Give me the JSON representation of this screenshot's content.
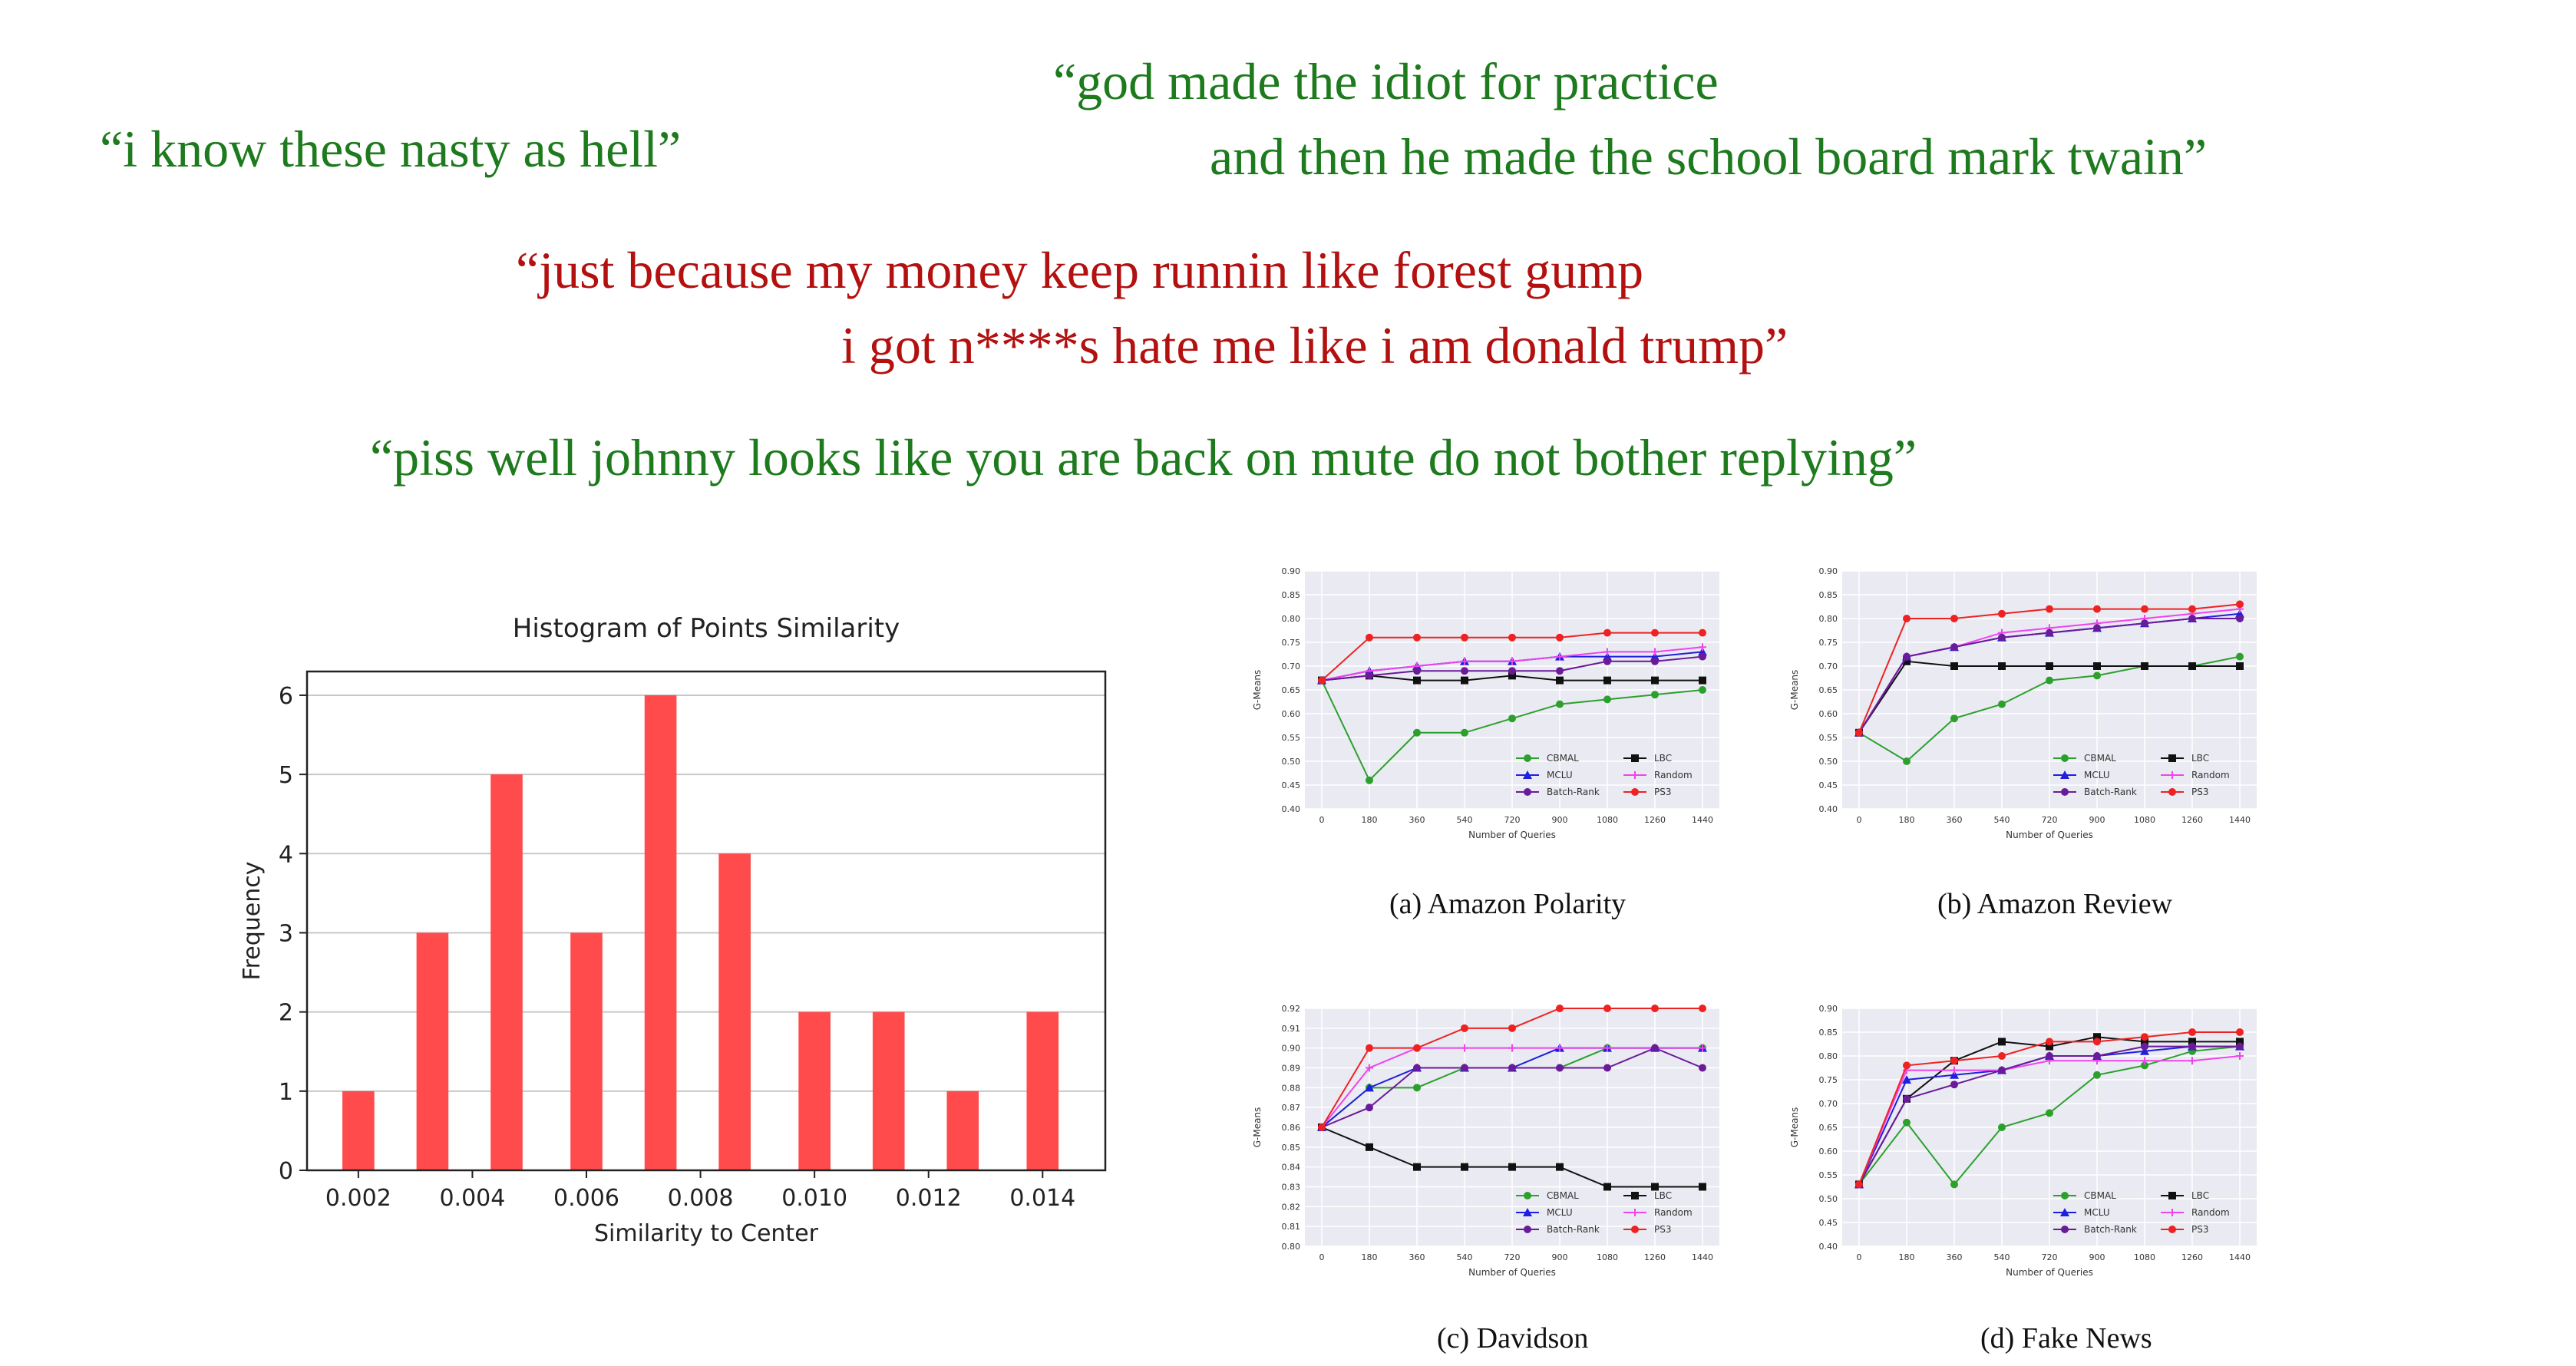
{
  "quotes": [
    {
      "text": "“i know these nasty as hell”",
      "color": "#1d7a1d"
    },
    {
      "text": "“god made the idiot for practice",
      "color": "#1d7a1d"
    },
    {
      "text": "and then he made the school board mark twain”",
      "color": "#1d7a1d"
    },
    {
      "text": "“just because my money keep runnin like forest gump",
      "color": "#b31010"
    },
    {
      "text": "i got n****s hate me like i am donald trump”",
      "color": "#b31010"
    },
    {
      "text": "“piss well johnny looks like you are back on mute do not bother replying”",
      "color": "#1d7a1d"
    }
  ],
  "captions": {
    "a": "(a) Amazon Polarity",
    "b": "(b) Amazon Review",
    "c": "(c) Davidson",
    "d": "(d) Fake News"
  },
  "legend_colors": {
    "CBMAL": "#2ca02c",
    "LBC": "#111111",
    "MCLU": "#1f1fdd",
    "Random": "#ee44ee",
    "Batch-Rank": "#6a1b9a",
    "PS3": "#ee2222"
  },
  "chart_data": [
    {
      "type": "bar",
      "title": "Histogram of Points Similarity",
      "xlabel": "Similarity to Center",
      "ylabel": "Frequency",
      "x": [
        0.002,
        0.0033,
        0.0046,
        0.006,
        0.0073,
        0.0086,
        0.01,
        0.0113,
        0.0126,
        0.014
      ],
      "values": [
        1,
        3,
        5,
        3,
        6,
        4,
        2,
        2,
        1,
        2
      ],
      "xticks": [
        "0.002",
        "0.004",
        "0.006",
        "0.008",
        "0.010",
        "0.012",
        "0.014"
      ],
      "xtick_values": [
        0.002,
        0.004,
        0.006,
        0.008,
        0.01,
        0.012,
        0.014
      ],
      "yticks": [
        "0",
        "1",
        "2",
        "3",
        "4",
        "5",
        "6"
      ],
      "xlim": [
        0.0011,
        0.0151
      ],
      "ylim": [
        0,
        6.3
      ],
      "bar_color": "#ff4b4b",
      "grid": "y"
    },
    {
      "type": "line",
      "xlabel": "Number of Queries",
      "ylabel": "G-Means",
      "x": [
        0,
        180,
        360,
        540,
        720,
        900,
        1080,
        1260,
        1440
      ],
      "ylim": [
        0.4,
        0.9
      ],
      "yticks": [
        "0.40",
        "0.45",
        "0.50",
        "0.55",
        "0.60",
        "0.65",
        "0.70",
        "0.75",
        "0.80",
        "0.85",
        "0.90"
      ],
      "series": [
        {
          "name": "CBMAL",
          "values": [
            0.67,
            0.46,
            0.56,
            0.56,
            0.59,
            0.62,
            0.63,
            0.64,
            0.65
          ]
        },
        {
          "name": "LBC",
          "values": [
            0.67,
            0.68,
            0.67,
            0.67,
            0.68,
            0.67,
            0.67,
            0.67,
            0.67
          ]
        },
        {
          "name": "MCLU",
          "values": [
            0.67,
            0.69,
            0.7,
            0.71,
            0.71,
            0.72,
            0.72,
            0.72,
            0.73
          ]
        },
        {
          "name": "Random",
          "values": [
            0.67,
            0.69,
            0.7,
            0.71,
            0.71,
            0.72,
            0.73,
            0.73,
            0.74
          ]
        },
        {
          "name": "Batch-Rank",
          "values": [
            0.67,
            0.68,
            0.69,
            0.69,
            0.69,
            0.69,
            0.71,
            0.71,
            0.72
          ]
        },
        {
          "name": "PS3",
          "values": [
            0.67,
            0.76,
            0.76,
            0.76,
            0.76,
            0.76,
            0.77,
            0.77,
            0.77
          ]
        }
      ]
    },
    {
      "type": "line",
      "xlabel": "Number of Queries",
      "ylabel": "G-Means",
      "x": [
        0,
        180,
        360,
        540,
        720,
        900,
        1080,
        1260,
        1440
      ],
      "ylim": [
        0.4,
        0.9
      ],
      "yticks": [
        "0.40",
        "0.45",
        "0.50",
        "0.55",
        "0.60",
        "0.65",
        "0.70",
        "0.75",
        "0.80",
        "0.85",
        "0.90"
      ],
      "series": [
        {
          "name": "CBMAL",
          "values": [
            0.56,
            0.5,
            0.59,
            0.62,
            0.67,
            0.68,
            0.7,
            0.7,
            0.72
          ]
        },
        {
          "name": "LBC",
          "values": [
            0.56,
            0.71,
            0.7,
            0.7,
            0.7,
            0.7,
            0.7,
            0.7,
            0.7
          ]
        },
        {
          "name": "MCLU",
          "values": [
            0.56,
            0.72,
            0.74,
            0.76,
            0.77,
            0.78,
            0.79,
            0.8,
            0.81
          ]
        },
        {
          "name": "Random",
          "values": [
            0.56,
            0.72,
            0.74,
            0.77,
            0.78,
            0.79,
            0.8,
            0.81,
            0.82
          ]
        },
        {
          "name": "Batch-Rank",
          "values": [
            0.56,
            0.72,
            0.74,
            0.76,
            0.77,
            0.78,
            0.79,
            0.8,
            0.8
          ]
        },
        {
          "name": "PS3",
          "values": [
            0.56,
            0.8,
            0.8,
            0.81,
            0.82,
            0.82,
            0.82,
            0.82,
            0.83
          ]
        }
      ]
    },
    {
      "type": "line",
      "xlabel": "Number of Queries",
      "ylabel": "G-Means",
      "x": [
        0,
        180,
        360,
        540,
        720,
        900,
        1080,
        1260,
        1440
      ],
      "ylim": [
        0.8,
        0.92
      ],
      "yticks": [
        "0.80",
        "0.81",
        "0.82",
        "0.83",
        "0.84",
        "0.85",
        "0.86",
        "0.87",
        "0.88",
        "0.89",
        "0.90",
        "0.91",
        "0.92"
      ],
      "series": [
        {
          "name": "CBMAL",
          "values": [
            0.86,
            0.88,
            0.88,
            0.89,
            0.89,
            0.89,
            0.9,
            0.9,
            0.9
          ]
        },
        {
          "name": "LBC",
          "values": [
            0.86,
            0.85,
            0.84,
            0.84,
            0.84,
            0.84,
            0.83,
            0.83,
            0.83
          ]
        },
        {
          "name": "MCLU",
          "values": [
            0.86,
            0.88,
            0.89,
            0.89,
            0.89,
            0.9,
            0.9,
            0.9,
            0.9
          ]
        },
        {
          "name": "Random",
          "values": [
            0.86,
            0.89,
            0.9,
            0.9,
            0.9,
            0.9,
            0.9,
            0.9,
            0.9
          ]
        },
        {
          "name": "Batch-Rank",
          "values": [
            0.86,
            0.87,
            0.89,
            0.89,
            0.89,
            0.89,
            0.89,
            0.9,
            0.89
          ]
        },
        {
          "name": "PS3",
          "values": [
            0.86,
            0.9,
            0.9,
            0.91,
            0.91,
            0.92,
            0.92,
            0.92,
            0.92
          ]
        }
      ]
    },
    {
      "type": "line",
      "xlabel": "Number of Queries",
      "ylabel": "G-Means",
      "x": [
        0,
        180,
        360,
        540,
        720,
        900,
        1080,
        1260,
        1440
      ],
      "ylim": [
        0.4,
        0.9
      ],
      "yticks": [
        "0.40",
        "0.45",
        "0.50",
        "0.55",
        "0.60",
        "0.65",
        "0.70",
        "0.75",
        "0.80",
        "0.85",
        "0.90"
      ],
      "series": [
        {
          "name": "CBMAL",
          "values": [
            0.53,
            0.66,
            0.53,
            0.65,
            0.68,
            0.76,
            0.78,
            0.81,
            0.82
          ]
        },
        {
          "name": "LBC",
          "values": [
            0.53,
            0.71,
            0.79,
            0.83,
            0.82,
            0.84,
            0.83,
            0.83,
            0.83
          ]
        },
        {
          "name": "MCLU",
          "values": [
            0.53,
            0.75,
            0.76,
            0.77,
            0.8,
            0.8,
            0.81,
            0.82,
            0.82
          ]
        },
        {
          "name": "Random",
          "values": [
            0.53,
            0.77,
            0.77,
            0.77,
            0.79,
            0.79,
            0.79,
            0.79,
            0.8
          ]
        },
        {
          "name": "Batch-Rank",
          "values": [
            0.53,
            0.71,
            0.74,
            0.77,
            0.8,
            0.8,
            0.82,
            0.82,
            0.82
          ]
        },
        {
          "name": "PS3",
          "values": [
            0.53,
            0.78,
            0.79,
            0.8,
            0.83,
            0.83,
            0.84,
            0.85,
            0.85
          ]
        }
      ]
    }
  ]
}
